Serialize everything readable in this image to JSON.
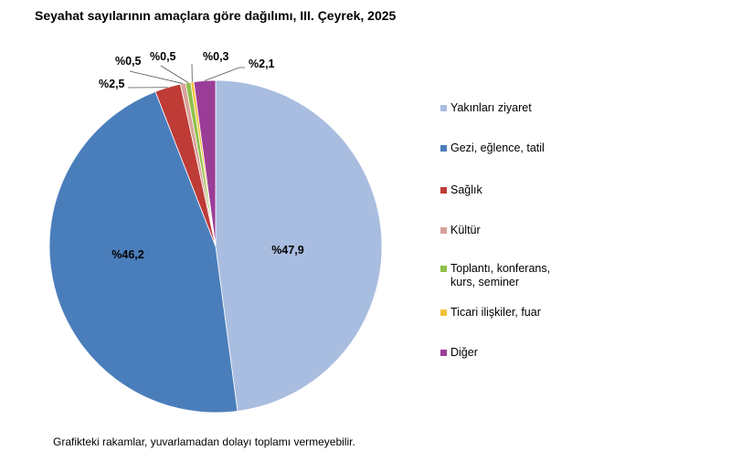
{
  "title": "Seyahat sayılarının amaçlara göre dağılımı, III. Çeyrek, 2025",
  "footnote": "Grafikteki rakamlar, yuvarlamadan dolayı toplamı vermeyebilir.",
  "chart_data": {
    "type": "pie",
    "start_angle_deg": 0,
    "direction": "clockwise",
    "legend_position": "right",
    "slices": [
      {
        "name": "Yakınları ziyaret",
        "value": 47.9,
        "label": "%47,9",
        "color": "#a9bde0"
      },
      {
        "name": "Gezi, eğlence, tatil",
        "value": 46.2,
        "label": "%46,2",
        "color": "#4a7ebb"
      },
      {
        "name": "Sağlık",
        "value": 2.5,
        "label": "%2,5",
        "color": "#be3b36"
      },
      {
        "name": "Kültür",
        "value": 0.5,
        "label": "%0,5",
        "color": "#d8a29a"
      },
      {
        "name": "Toplantı, konferans,\nkurs, seminer",
        "value": 0.5,
        "label": "%0,5",
        "color": "#8fc04a"
      },
      {
        "name": "Ticari ilişkiler, fuar",
        "value": 0.3,
        "label": "%0,3",
        "color": "#f3c23a"
      },
      {
        "name": "Diğer",
        "value": 2.1,
        "label": "%2,1",
        "color": "#9b3d97"
      }
    ]
  }
}
